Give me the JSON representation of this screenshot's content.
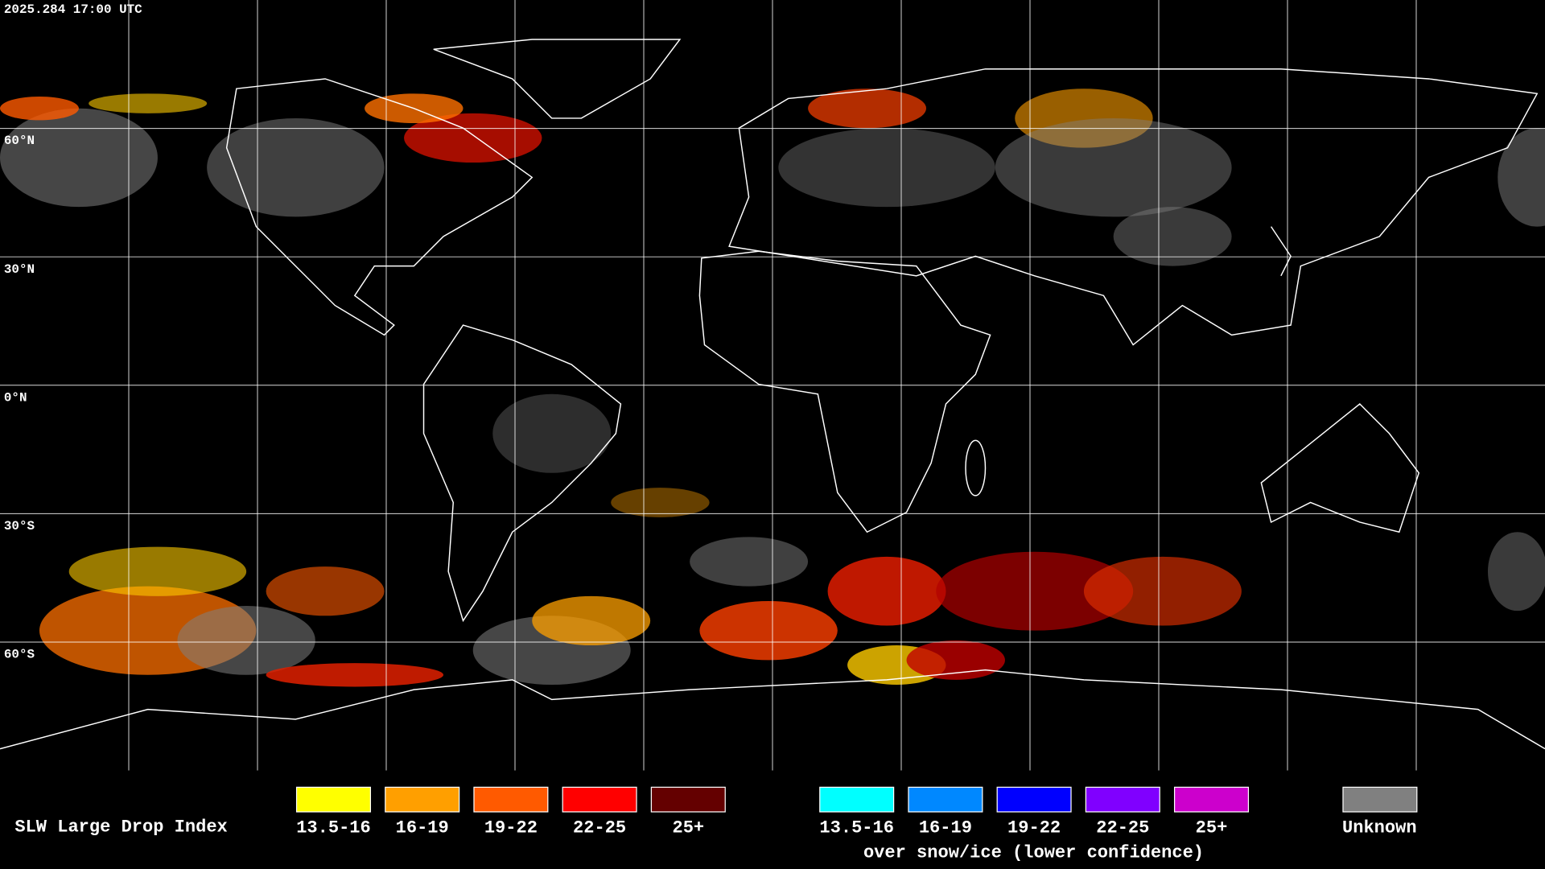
{
  "header": {
    "timestamp": "2025.284 17:00 UTC"
  },
  "map": {
    "lat_labels": [
      "60°N",
      "30°N",
      "0°N",
      "30°S",
      "60°S"
    ]
  },
  "legend": {
    "title": "SLW Large Drop Index",
    "items": [
      {
        "label": "13.5-16",
        "color": "#ffff00"
      },
      {
        "label": "16-19",
        "color": "#ff9f00"
      },
      {
        "label": "19-22",
        "color": "#ff5a00"
      },
      {
        "label": "22-25",
        "color": "#ff0000"
      },
      {
        "label": "25+",
        "color": "#640000"
      }
    ],
    "snow_items": [
      {
        "label": "13.5-16",
        "color": "#00ffff"
      },
      {
        "label": "16-19",
        "color": "#0088ff"
      },
      {
        "label": "19-22",
        "color": "#0000ff"
      },
      {
        "label": "22-25",
        "color": "#8000ff"
      },
      {
        "label": "25+",
        "color": "#cc00cc"
      }
    ],
    "snow_caption": "over snow/ice (lower confidence)",
    "unknown": {
      "label": "Unknown",
      "color": "#808080"
    }
  }
}
